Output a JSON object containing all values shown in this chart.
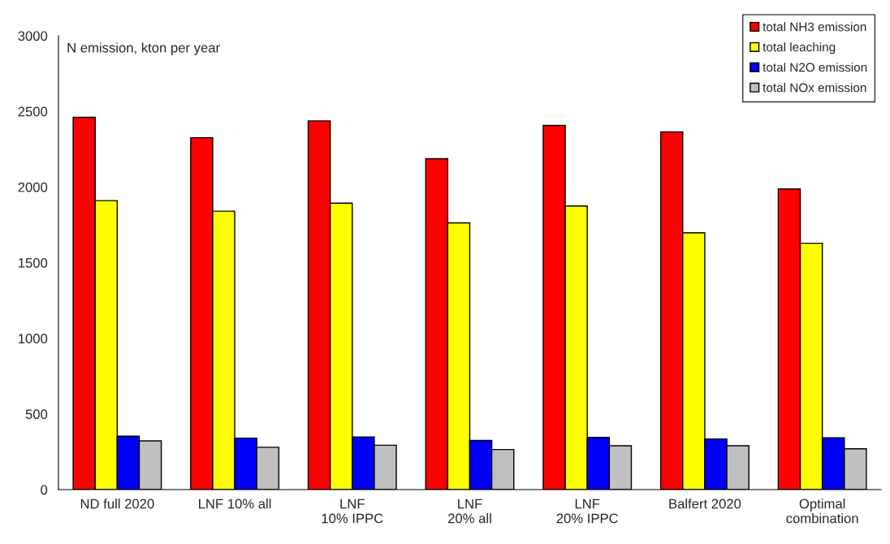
{
  "chart_data": {
    "type": "bar",
    "ylabel": "N emission, kton per year",
    "categories": [
      "ND full 2020",
      "LNF 10% all",
      "LNF\n10% IPPC",
      "LNF\n20% all",
      "LNF\n20% IPPC",
      "Balfert 2020",
      "Optimal\ncombination"
    ],
    "series": [
      {
        "name": "total NH3 emission",
        "color": "#ff0000",
        "values": [
          2461,
          2326,
          2437,
          2187,
          2407,
          2364,
          1987
        ]
      },
      {
        "name": "total leaching",
        "color": "#ffff00",
        "values": [
          1910,
          1840,
          1893,
          1763,
          1874,
          1697,
          1628
        ]
      },
      {
        "name": "total N2O emission",
        "color": "#0000ff",
        "values": [
          353,
          340,
          348,
          325,
          345,
          335,
          343
        ]
      },
      {
        "name": "total NOx emission",
        "color": "#c0c0c0",
        "values": [
          322,
          280,
          293,
          265,
          290,
          290,
          270
        ]
      }
    ],
    "ylim": [
      0,
      3000
    ],
    "yticks": [
      0,
      500,
      1000,
      1500,
      2000,
      2500,
      3000
    ],
    "grid": false,
    "legend": "top right"
  }
}
